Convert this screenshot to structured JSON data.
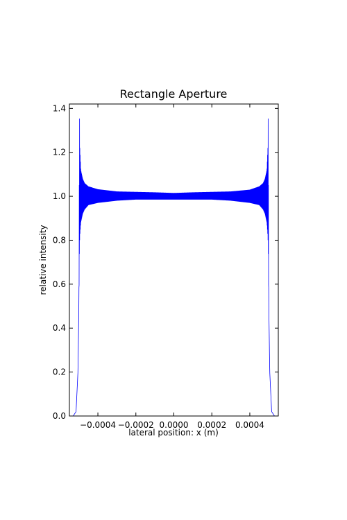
{
  "chart_data": {
    "type": "line",
    "title": "Rectangle Aperture",
    "xlabel": "lateral position: x (m)",
    "ylabel": "relative intensity",
    "xlim": [
      -0.00055,
      0.00055
    ],
    "ylim": [
      0.0,
      1.42
    ],
    "x_ticks": [
      -0.0004,
      -0.0002,
      0.0,
      0.0002,
      0.0004
    ],
    "x_tick_labels": [
      "−0.0004",
      "−0.0002",
      "0.0000",
      "0.0002",
      "0.0004"
    ],
    "y_ticks": [
      0.0,
      0.2,
      0.4,
      0.6,
      0.8,
      1.0,
      1.2,
      1.4
    ],
    "y_tick_labels": [
      "0.0",
      "0.2",
      "0.4",
      "0.6",
      "0.8",
      "1.0",
      "1.2",
      "1.4"
    ],
    "grid": false,
    "series": [
      {
        "color": "#0000ff",
        "x": [
          -0.00055,
          -0.00053,
          -0.000515,
          -0.000505,
          -0.0005,
          -0.000497,
          -0.000495,
          -0.00049,
          -0.00048,
          -0.00047,
          -0.00045,
          -0.0004,
          -0.0003,
          -0.0002,
          -0.0001,
          0.0,
          0.0001,
          0.0002,
          0.0003,
          0.0004,
          0.00045,
          0.00047,
          0.00048,
          0.00049,
          0.000495,
          0.000497,
          0.0005,
          0.000505,
          0.000515,
          0.00053,
          0.00055
        ],
        "upper": [
          0.0,
          0.0,
          0.02,
          0.2,
          0.5,
          1.39,
          1.22,
          1.12,
          1.08,
          1.06,
          1.045,
          1.032,
          1.022,
          1.02,
          1.018,
          1.015,
          1.018,
          1.02,
          1.022,
          1.03,
          1.045,
          1.06,
          1.08,
          1.12,
          1.22,
          1.39,
          0.5,
          0.2,
          0.02,
          0.0,
          0.0
        ],
        "lower": [
          0.0,
          0.0,
          0.02,
          0.2,
          0.5,
          0.77,
          0.82,
          0.88,
          0.92,
          0.94,
          0.96,
          0.97,
          0.98,
          0.985,
          0.985,
          0.985,
          0.985,
          0.985,
          0.98,
          0.97,
          0.96,
          0.94,
          0.92,
          0.88,
          0.82,
          0.77,
          0.5,
          0.2,
          0.02,
          0.0,
          0.0
        ]
      }
    ]
  }
}
